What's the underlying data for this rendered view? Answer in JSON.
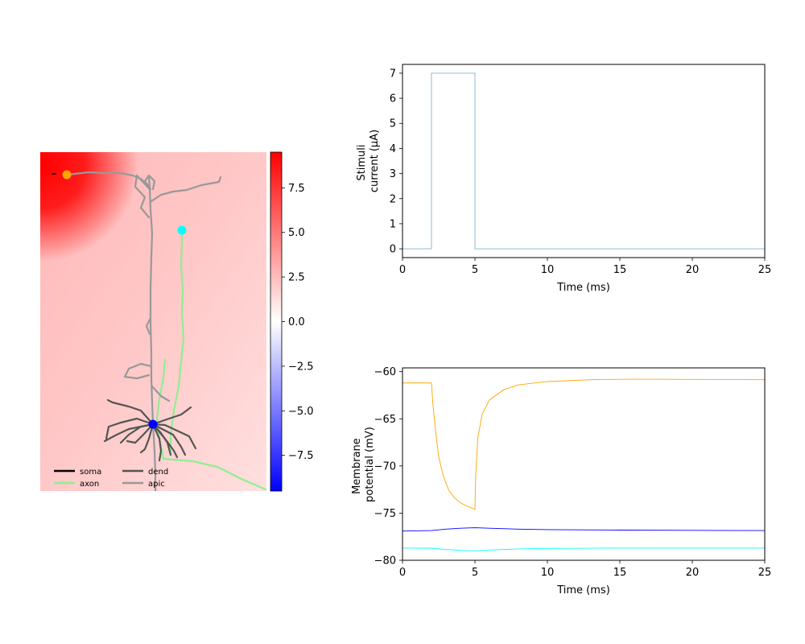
{
  "chart_data": [
    {
      "type": "heatmap",
      "panel": "morphology",
      "colorbar": {
        "ticks": [
          "7.5",
          "5.0",
          "2.5",
          "0.0",
          "−2.5",
          "−5.0",
          "−7.5"
        ],
        "tick_values": [
          7.5,
          5.0,
          2.5,
          0.0,
          -2.5,
          -5.0,
          -7.5
        ],
        "range": [
          -9.5,
          9.5
        ],
        "colors": {
          "high": "#ff0000",
          "mid": "#ffffff",
          "low": "#0000ff"
        }
      },
      "legend": {
        "placement": "lower-left",
        "entries": [
          {
            "label": "soma",
            "color": "#000000"
          },
          {
            "label": "dend",
            "color": "#555555"
          },
          {
            "label": "axon",
            "color": "#90ee90"
          },
          {
            "label": "apic",
            "color": "#999999"
          }
        ]
      },
      "markers": [
        {
          "color": "#ffa500"
        },
        {
          "color": "#00ffff"
        },
        {
          "color": "#0000ff"
        }
      ]
    },
    {
      "type": "line",
      "panel": "stimulus",
      "xlabel": "Time (ms)",
      "ylabel_lines": [
        "Stimuli",
        "current (μA)"
      ],
      "xlim": [
        0,
        25
      ],
      "ylim": [
        -0.35,
        7.35
      ],
      "xticks": [
        0,
        5,
        10,
        15,
        20,
        25
      ],
      "yticks": [
        0,
        1,
        2,
        3,
        4,
        5,
        6,
        7
      ],
      "series": [
        {
          "color": "#7fb3d5",
          "x": [
            0,
            2,
            2,
            5,
            5,
            25
          ],
          "y": [
            0,
            0,
            7,
            7,
            0,
            0
          ]
        }
      ]
    },
    {
      "type": "line",
      "panel": "membrane",
      "xlabel": "Time (ms)",
      "ylabel_lines": [
        "Membrane",
        "potential (mV)"
      ],
      "xlim": [
        0,
        25
      ],
      "ylim": [
        -80,
        -59.6
      ],
      "xticks": [
        0,
        5,
        10,
        15,
        20,
        25
      ],
      "yticks": [
        -60,
        -65,
        -70,
        -75,
        -80
      ],
      "series": [
        {
          "color": "#ffa500",
          "x": [
            0,
            2,
            2.1,
            2.3,
            2.5,
            2.8,
            3.2,
            3.6,
            4.0,
            4.5,
            5.0,
            5.05,
            5.2,
            5.5,
            6,
            7,
            8,
            10,
            13,
            16,
            20,
            25
          ],
          "y": [
            -61.2,
            -61.2,
            -63.5,
            -66.5,
            -69.0,
            -71.0,
            -72.6,
            -73.4,
            -73.9,
            -74.3,
            -74.6,
            -71.0,
            -67.0,
            -64.5,
            -63.0,
            -61.9,
            -61.4,
            -61.05,
            -60.85,
            -60.8,
            -60.82,
            -60.85
          ]
        },
        {
          "color": "#0000ff",
          "x": [
            0,
            2,
            3,
            4,
            5,
            6,
            8,
            10,
            15,
            20,
            25
          ],
          "y": [
            -76.9,
            -76.85,
            -76.7,
            -76.6,
            -76.55,
            -76.6,
            -76.7,
            -76.75,
            -76.8,
            -76.83,
            -76.85
          ]
        },
        {
          "color": "#00ffff",
          "x": [
            0,
            2,
            3,
            4,
            5,
            6,
            8,
            10,
            15,
            20,
            25
          ],
          "y": [
            -78.7,
            -78.72,
            -78.85,
            -78.95,
            -79.0,
            -78.92,
            -78.8,
            -78.75,
            -78.7,
            -78.7,
            -78.7
          ]
        }
      ]
    }
  ]
}
